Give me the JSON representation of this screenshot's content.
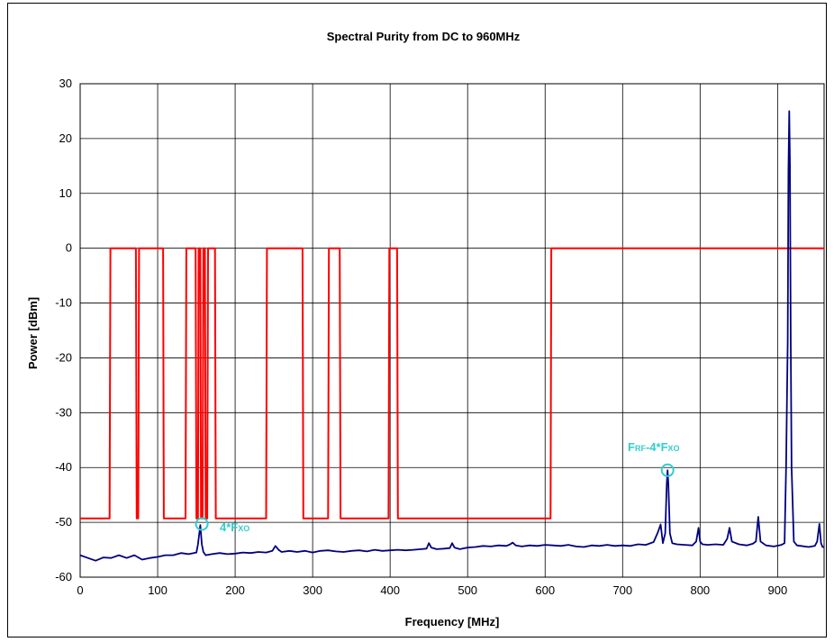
{
  "chart_data": {
    "type": "line",
    "title": "Spectral Purity from DC to 960MHz",
    "xlabel": "Frequency [MHz]",
    "ylabel": "Power [dBm]",
    "xlim": [
      0,
      960
    ],
    "ylim": [
      -60,
      30
    ],
    "xticks": [
      0,
      100,
      200,
      300,
      400,
      500,
      600,
      700,
      800,
      900
    ],
    "yticks": [
      -60,
      -50,
      -40,
      -30,
      -20,
      -10,
      0,
      10,
      20,
      30
    ],
    "grid": true,
    "legend": "none",
    "series": [
      {
        "color": "#ff0000",
        "style": "spectral-mask",
        "x": [
          0,
          38,
          39,
          72,
          73,
          75,
          76,
          107,
          108,
          136,
          137,
          149,
          150,
          152,
          153,
          155,
          156,
          158,
          159,
          161,
          162,
          164,
          165,
          174,
          175,
          240,
          241,
          287,
          288,
          320,
          321,
          335,
          336,
          398,
          399,
          409,
          410,
          607,
          608,
          614,
          615,
          960
        ],
        "y": [
          -49.3,
          -49.3,
          0,
          0,
          -49.3,
          -49.3,
          0,
          0,
          -49.3,
          -49.3,
          0,
          0,
          -49.3,
          -49.3,
          0,
          0,
          -49.3,
          -49.3,
          0,
          0,
          -49.3,
          -49.3,
          0,
          0,
          -49.3,
          -49.3,
          0,
          0,
          -49.3,
          -49.3,
          0,
          0,
          -49.3,
          -49.3,
          0,
          0,
          -49.3,
          -49.3,
          0,
          0,
          0,
          0
        ]
      },
      {
        "color": "#000080",
        "style": "spectrum",
        "x": [
          0,
          10,
          20,
          30,
          40,
          50,
          60,
          70,
          80,
          90,
          100,
          110,
          120,
          130,
          140,
          150,
          152,
          155,
          157,
          159,
          162,
          170,
          180,
          190,
          200,
          210,
          220,
          230,
          240,
          248,
          252,
          256,
          260,
          270,
          280,
          290,
          300,
          310,
          320,
          330,
          340,
          350,
          360,
          370,
          380,
          390,
          400,
          410,
          420,
          430,
          440,
          447,
          450,
          453,
          460,
          470,
          477,
          480,
          483,
          490,
          500,
          510,
          520,
          530,
          540,
          550,
          555,
          558,
          562,
          570,
          580,
          590,
          600,
          610,
          620,
          630,
          640,
          650,
          660,
          670,
          680,
          690,
          700,
          710,
          720,
          730,
          740,
          745,
          749,
          752,
          755,
          757,
          758,
          759,
          761,
          764,
          770,
          780,
          790,
          795,
          798,
          800,
          803,
          810,
          820,
          830,
          835,
          838,
          841,
          850,
          860,
          868,
          872,
          875,
          878,
          885,
          895,
          905,
          909,
          911,
          913,
          914,
          915,
          916,
          917,
          918,
          921,
          925,
          930,
          940,
          948,
          951,
          954,
          956,
          958,
          960
        ],
        "y": [
          -56,
          -56.5,
          -57,
          -56.4,
          -56.5,
          -56,
          -56.5,
          -56,
          -56.8,
          -56.5,
          -56.3,
          -56,
          -56,
          -55.6,
          -55.8,
          -55.5,
          -54,
          -50.5,
          -54,
          -55.4,
          -56,
          -55.8,
          -55.6,
          -55.8,
          -55.7,
          -55.5,
          -55.6,
          -55.4,
          -55.5,
          -55.2,
          -54.3,
          -55,
          -55.4,
          -55.2,
          -55.4,
          -55.2,
          -55.5,
          -55.2,
          -55.1,
          -55.3,
          -55.4,
          -55.2,
          -55.1,
          -55.3,
          -55,
          -55.2,
          -55.1,
          -55,
          -55.1,
          -55,
          -54.9,
          -54.8,
          -53.8,
          -54.6,
          -54.9,
          -54.8,
          -54.7,
          -53.8,
          -54.6,
          -54.9,
          -54.6,
          -54.5,
          -54.3,
          -54.4,
          -54.2,
          -54.3,
          -54,
          -53.7,
          -54.2,
          -54.4,
          -54.2,
          -54.3,
          -54.1,
          -54.2,
          -54.3,
          -54.1,
          -54.4,
          -54.5,
          -54.2,
          -54.3,
          -54.1,
          -54.3,
          -54.2,
          -54.3,
          -54,
          -54.1,
          -53.6,
          -52,
          -50.4,
          -53.8,
          -52,
          -43,
          -40.5,
          -43,
          -52,
          -53.8,
          -54,
          -54.1,
          -54.2,
          -53.5,
          -51,
          -53.5,
          -54,
          -54.1,
          -54,
          -54.1,
          -53,
          -51,
          -53.5,
          -54,
          -54.2,
          -53.9,
          -53.5,
          -49,
          -53.5,
          -54.2,
          -54.4,
          -54.1,
          -53.8,
          -40,
          -17,
          14,
          25,
          15,
          -18,
          -40,
          -53.5,
          -54.2,
          -54.3,
          -54.5,
          -54.3,
          -53.5,
          -50.3,
          -53.8,
          -54.5,
          -54.5
        ]
      }
    ],
    "annotations": [
      {
        "text": "4*Fxo",
        "x": 157,
        "y": -50.3
      },
      {
        "text": "Frf-4*Fxo",
        "x": 758,
        "y": -40.5
      }
    ]
  },
  "annot_parts": {
    "a1": {
      "p1": "4*F",
      "p2": "XO"
    },
    "a2": {
      "p1": "F",
      "p2": "RF",
      "p3": "-4*F",
      "p4": "XO"
    }
  }
}
